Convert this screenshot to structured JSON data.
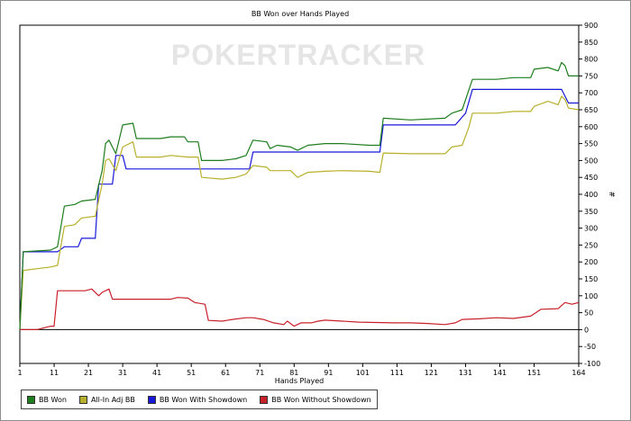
{
  "chart_data": {
    "type": "line",
    "title": "BB Won over Hands Played",
    "xlabel": "Hands Played",
    "ylabel": "#",
    "watermark": "POKERTRACKER",
    "xlim": [
      1,
      164
    ],
    "ylim": [
      -100,
      900
    ],
    "x_ticks": [
      1,
      11,
      21,
      31,
      41,
      51,
      61,
      71,
      81,
      91,
      101,
      111,
      121,
      131,
      141,
      151,
      164
    ],
    "y_ticks": [
      -100,
      -50,
      0,
      50,
      100,
      150,
      200,
      250,
      300,
      350,
      400,
      450,
      500,
      550,
      600,
      650,
      700,
      750,
      800,
      850,
      900
    ],
    "grid": false,
    "legend_position": "bottom",
    "series": [
      {
        "name": "BB Won",
        "color": "#1e7d1e",
        "points": [
          [
            1,
            0
          ],
          [
            2,
            230
          ],
          [
            10,
            235
          ],
          [
            12,
            245
          ],
          [
            14,
            365
          ],
          [
            17,
            370
          ],
          [
            19,
            380
          ],
          [
            23,
            385
          ],
          [
            25,
            470
          ],
          [
            26,
            550
          ],
          [
            27,
            560
          ],
          [
            29,
            520
          ],
          [
            31,
            605
          ],
          [
            34,
            610
          ],
          [
            35,
            565
          ],
          [
            42,
            565
          ],
          [
            45,
            570
          ],
          [
            49,
            570
          ],
          [
            50,
            555
          ],
          [
            53,
            555
          ],
          [
            54,
            500
          ],
          [
            60,
            500
          ],
          [
            64,
            505
          ],
          [
            67,
            515
          ],
          [
            69,
            560
          ],
          [
            73,
            555
          ],
          [
            74,
            535
          ],
          [
            76,
            545
          ],
          [
            80,
            540
          ],
          [
            82,
            530
          ],
          [
            85,
            545
          ],
          [
            90,
            550
          ],
          [
            95,
            550
          ],
          [
            103,
            545
          ],
          [
            106,
            545
          ],
          [
            107,
            625
          ],
          [
            115,
            620
          ],
          [
            125,
            625
          ],
          [
            127,
            640
          ],
          [
            130,
            650
          ],
          [
            132,
            710
          ],
          [
            133,
            740
          ],
          [
            140,
            740
          ],
          [
            145,
            745
          ],
          [
            150,
            745
          ],
          [
            151,
            770
          ],
          [
            155,
            775
          ],
          [
            158,
            765
          ],
          [
            159,
            790
          ],
          [
            160,
            780
          ],
          [
            161,
            750
          ],
          [
            164,
            750
          ]
        ]
      },
      {
        "name": "All-In Adj BB",
        "color": "#b8b02c",
        "points": [
          [
            1,
            0
          ],
          [
            2,
            175
          ],
          [
            10,
            185
          ],
          [
            12,
            190
          ],
          [
            14,
            305
          ],
          [
            17,
            310
          ],
          [
            19,
            330
          ],
          [
            23,
            335
          ],
          [
            25,
            430
          ],
          [
            26,
            500
          ],
          [
            27,
            505
          ],
          [
            29,
            470
          ],
          [
            31,
            540
          ],
          [
            34,
            555
          ],
          [
            35,
            510
          ],
          [
            42,
            510
          ],
          [
            45,
            515
          ],
          [
            50,
            510
          ],
          [
            53,
            510
          ],
          [
            54,
            450
          ],
          [
            60,
            445
          ],
          [
            64,
            450
          ],
          [
            67,
            460
          ],
          [
            69,
            485
          ],
          [
            73,
            480
          ],
          [
            74,
            470
          ],
          [
            80,
            470
          ],
          [
            82,
            450
          ],
          [
            85,
            465
          ],
          [
            90,
            468
          ],
          [
            95,
            470
          ],
          [
            103,
            468
          ],
          [
            106,
            465
          ],
          [
            107,
            522
          ],
          [
            115,
            520
          ],
          [
            125,
            520
          ],
          [
            127,
            540
          ],
          [
            130,
            545
          ],
          [
            132,
            600
          ],
          [
            133,
            640
          ],
          [
            140,
            640
          ],
          [
            145,
            645
          ],
          [
            150,
            645
          ],
          [
            151,
            660
          ],
          [
            155,
            675
          ],
          [
            158,
            665
          ],
          [
            159,
            690
          ],
          [
            160,
            680
          ],
          [
            161,
            655
          ],
          [
            164,
            650
          ]
        ]
      },
      {
        "name": "BB Won With Showdown",
        "color": "#1818d8",
        "points": [
          [
            1,
            0
          ],
          [
            2,
            230
          ],
          [
            12,
            230
          ],
          [
            14,
            245
          ],
          [
            18,
            245
          ],
          [
            19,
            270
          ],
          [
            23,
            270
          ],
          [
            24,
            430
          ],
          [
            28,
            430
          ],
          [
            29,
            515
          ],
          [
            31,
            515
          ],
          [
            32,
            475
          ],
          [
            68,
            475
          ],
          [
            69,
            525
          ],
          [
            106,
            525
          ],
          [
            107,
            605
          ],
          [
            128,
            605
          ],
          [
            131,
            640
          ],
          [
            133,
            710
          ],
          [
            159,
            710
          ],
          [
            161,
            670
          ],
          [
            164,
            670
          ]
        ]
      },
      {
        "name": "BB Won Without Showdown",
        "color": "#c8202a",
        "points": [
          [
            1,
            0
          ],
          [
            6,
            0
          ],
          [
            10,
            10
          ],
          [
            11,
            10
          ],
          [
            12,
            115
          ],
          [
            20,
            115
          ],
          [
            22,
            120
          ],
          [
            24,
            100
          ],
          [
            25,
            110
          ],
          [
            27,
            120
          ],
          [
            28,
            90
          ],
          [
            35,
            90
          ],
          [
            40,
            90
          ],
          [
            45,
            90
          ],
          [
            47,
            95
          ],
          [
            50,
            93
          ],
          [
            52,
            80
          ],
          [
            55,
            75
          ],
          [
            56,
            27
          ],
          [
            60,
            25
          ],
          [
            63,
            30
          ],
          [
            67,
            35
          ],
          [
            69,
            35
          ],
          [
            72,
            30
          ],
          [
            75,
            20
          ],
          [
            78,
            15
          ],
          [
            79,
            25
          ],
          [
            81,
            10
          ],
          [
            83,
            20
          ],
          [
            86,
            20
          ],
          [
            88,
            25
          ],
          [
            90,
            28
          ],
          [
            95,
            25
          ],
          [
            100,
            22
          ],
          [
            110,
            20
          ],
          [
            115,
            20
          ],
          [
            120,
            18
          ],
          [
            125,
            15
          ],
          [
            128,
            20
          ],
          [
            130,
            30
          ],
          [
            135,
            32
          ],
          [
            140,
            35
          ],
          [
            145,
            33
          ],
          [
            150,
            40
          ],
          [
            153,
            60
          ],
          [
            158,
            62
          ],
          [
            160,
            80
          ],
          [
            162,
            75
          ],
          [
            164,
            80
          ]
        ]
      }
    ]
  }
}
